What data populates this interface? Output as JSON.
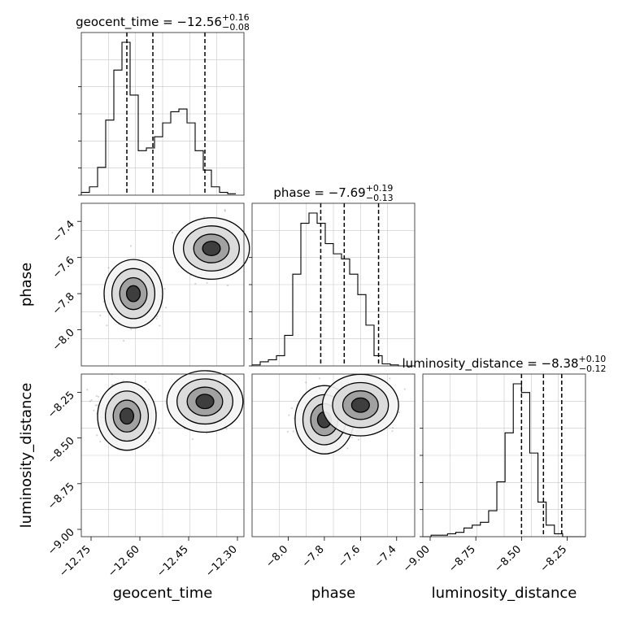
{
  "chart_data": {
    "type": "corner",
    "parameters": [
      "geocent_time",
      "phase",
      "luminosity_distance"
    ],
    "titles": [
      {
        "param": "geocent_time",
        "prefix": "geocent_time = −12.56",
        "plus": "+0.16",
        "minus": "−0.08"
      },
      {
        "param": "phase",
        "prefix": "phase = −7.69",
        "plus": "+0.19",
        "minus": "−0.13"
      },
      {
        "param": "luminosity_distance",
        "prefix": "luminosity_distance = −8.38",
        "plus": "+0.10",
        "minus": "−0.12"
      }
    ],
    "axes": [
      {
        "param": "geocent_time",
        "range": [
          -12.78,
          -12.28
        ],
        "ticks": [
          -12.75,
          -12.6,
          -12.45,
          -12.3
        ],
        "tick_labels": [
          "−12.75",
          "−12.60",
          "−12.45",
          "−12.30"
        ],
        "xlabel": "geocent_time"
      },
      {
        "param": "phase",
        "range": [
          -8.2,
          -7.3
        ],
        "ticks": [
          -8.0,
          -7.8,
          -7.6,
          -7.4
        ],
        "tick_labels": [
          "−8.0",
          "−7.8",
          "−7.6",
          "−7.4"
        ],
        "xlabel": "phase",
        "ylabel": "phase"
      },
      {
        "param": "luminosity_distance",
        "range": [
          -9.04,
          -8.15
        ],
        "ticks": [
          -9.0,
          -8.75,
          -8.5,
          -8.25
        ],
        "tick_labels": [
          "−9.00",
          "−8.75",
          "−8.50",
          "−8.25"
        ],
        "xlabel": "luminosity_distance",
        "ylabel": "luminosity_distance"
      }
    ],
    "histograms": [
      {
        "param": "geocent_time",
        "edges_start": -12.78,
        "bin_width": 0.025,
        "counts": [
          2,
          6,
          20,
          54,
          90,
          110,
          72,
          32,
          34,
          42,
          52,
          60,
          62,
          52,
          32,
          18,
          6,
          2,
          1
        ],
        "quantiles": [
          -12.64,
          -12.56,
          -12.4
        ]
      },
      {
        "param": "phase",
        "edges_start": -8.2,
        "bin_width": 0.045,
        "counts": [
          1,
          4,
          6,
          10,
          30,
          90,
          140,
          150,
          140,
          120,
          110,
          105,
          90,
          70,
          40,
          10,
          2,
          1,
          0,
          0
        ],
        "quantiles": [
          -7.82,
          -7.69,
          -7.5
        ]
      },
      {
        "param": "luminosity_distance",
        "edges_start": -9.04,
        "bin_width": 0.045,
        "counts": [
          0,
          1,
          1,
          2,
          3,
          6,
          8,
          10,
          18,
          38,
          72,
          106,
          100,
          58,
          24,
          8,
          2,
          0,
          0,
          0
        ],
        "quantiles": [
          -8.5,
          -8.38,
          -8.28
        ]
      }
    ],
    "modes_2d": [
      {
        "x": "geocent_time",
        "y": "phase",
        "modes": [
          {
            "cx": -12.62,
            "cy": -7.8,
            "weight": 0.55
          },
          {
            "cx": -12.38,
            "cy": -7.55,
            "weight": 0.45
          }
        ]
      },
      {
        "x": "geocent_time",
        "y": "luminosity_distance",
        "modes": [
          {
            "cx": -12.64,
            "cy": -8.38,
            "weight": 0.55
          },
          {
            "cx": -12.4,
            "cy": -8.3,
            "weight": 0.45
          }
        ]
      },
      {
        "x": "phase",
        "y": "luminosity_distance",
        "modes": [
          {
            "cx": -7.8,
            "cy": -8.4,
            "weight": 0.55
          },
          {
            "cx": -7.6,
            "cy": -8.32,
            "weight": 0.45
          }
        ]
      }
    ],
    "grid": true
  }
}
